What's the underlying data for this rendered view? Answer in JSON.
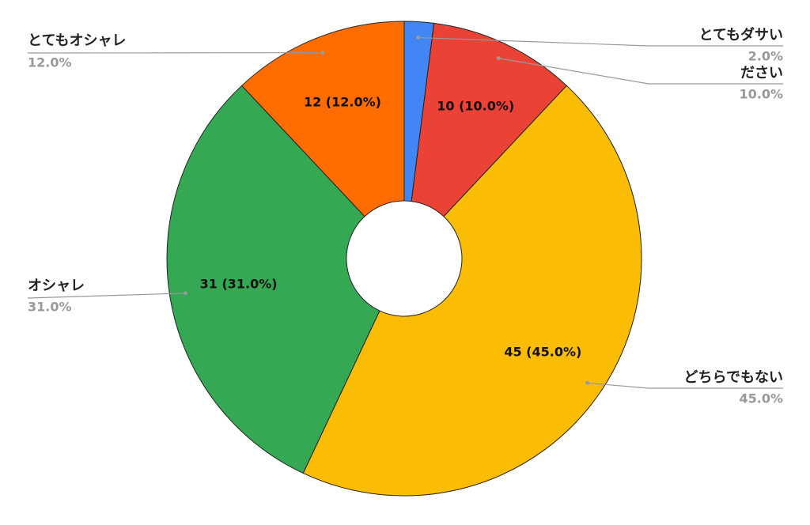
{
  "chart_data": {
    "type": "donut",
    "categories": [
      "とてもダサい",
      "ださい",
      "どちらでもない",
      "オシャレ",
      "とてもオシャレ"
    ],
    "values": [
      2,
      10,
      45,
      31,
      12
    ],
    "value_labels": [
      null,
      "10 (10.0%)",
      "45 (45.0%)",
      "31 (31.0%)",
      "12 (12.0%)"
    ],
    "percent_labels": [
      "2.0%",
      "10.0%",
      "45.0%",
      "31.0%",
      "12.0%"
    ],
    "colors": [
      "#4285f4",
      "#ea4335",
      "#fbbc04",
      "#34a853",
      "#ff6d01"
    ]
  }
}
